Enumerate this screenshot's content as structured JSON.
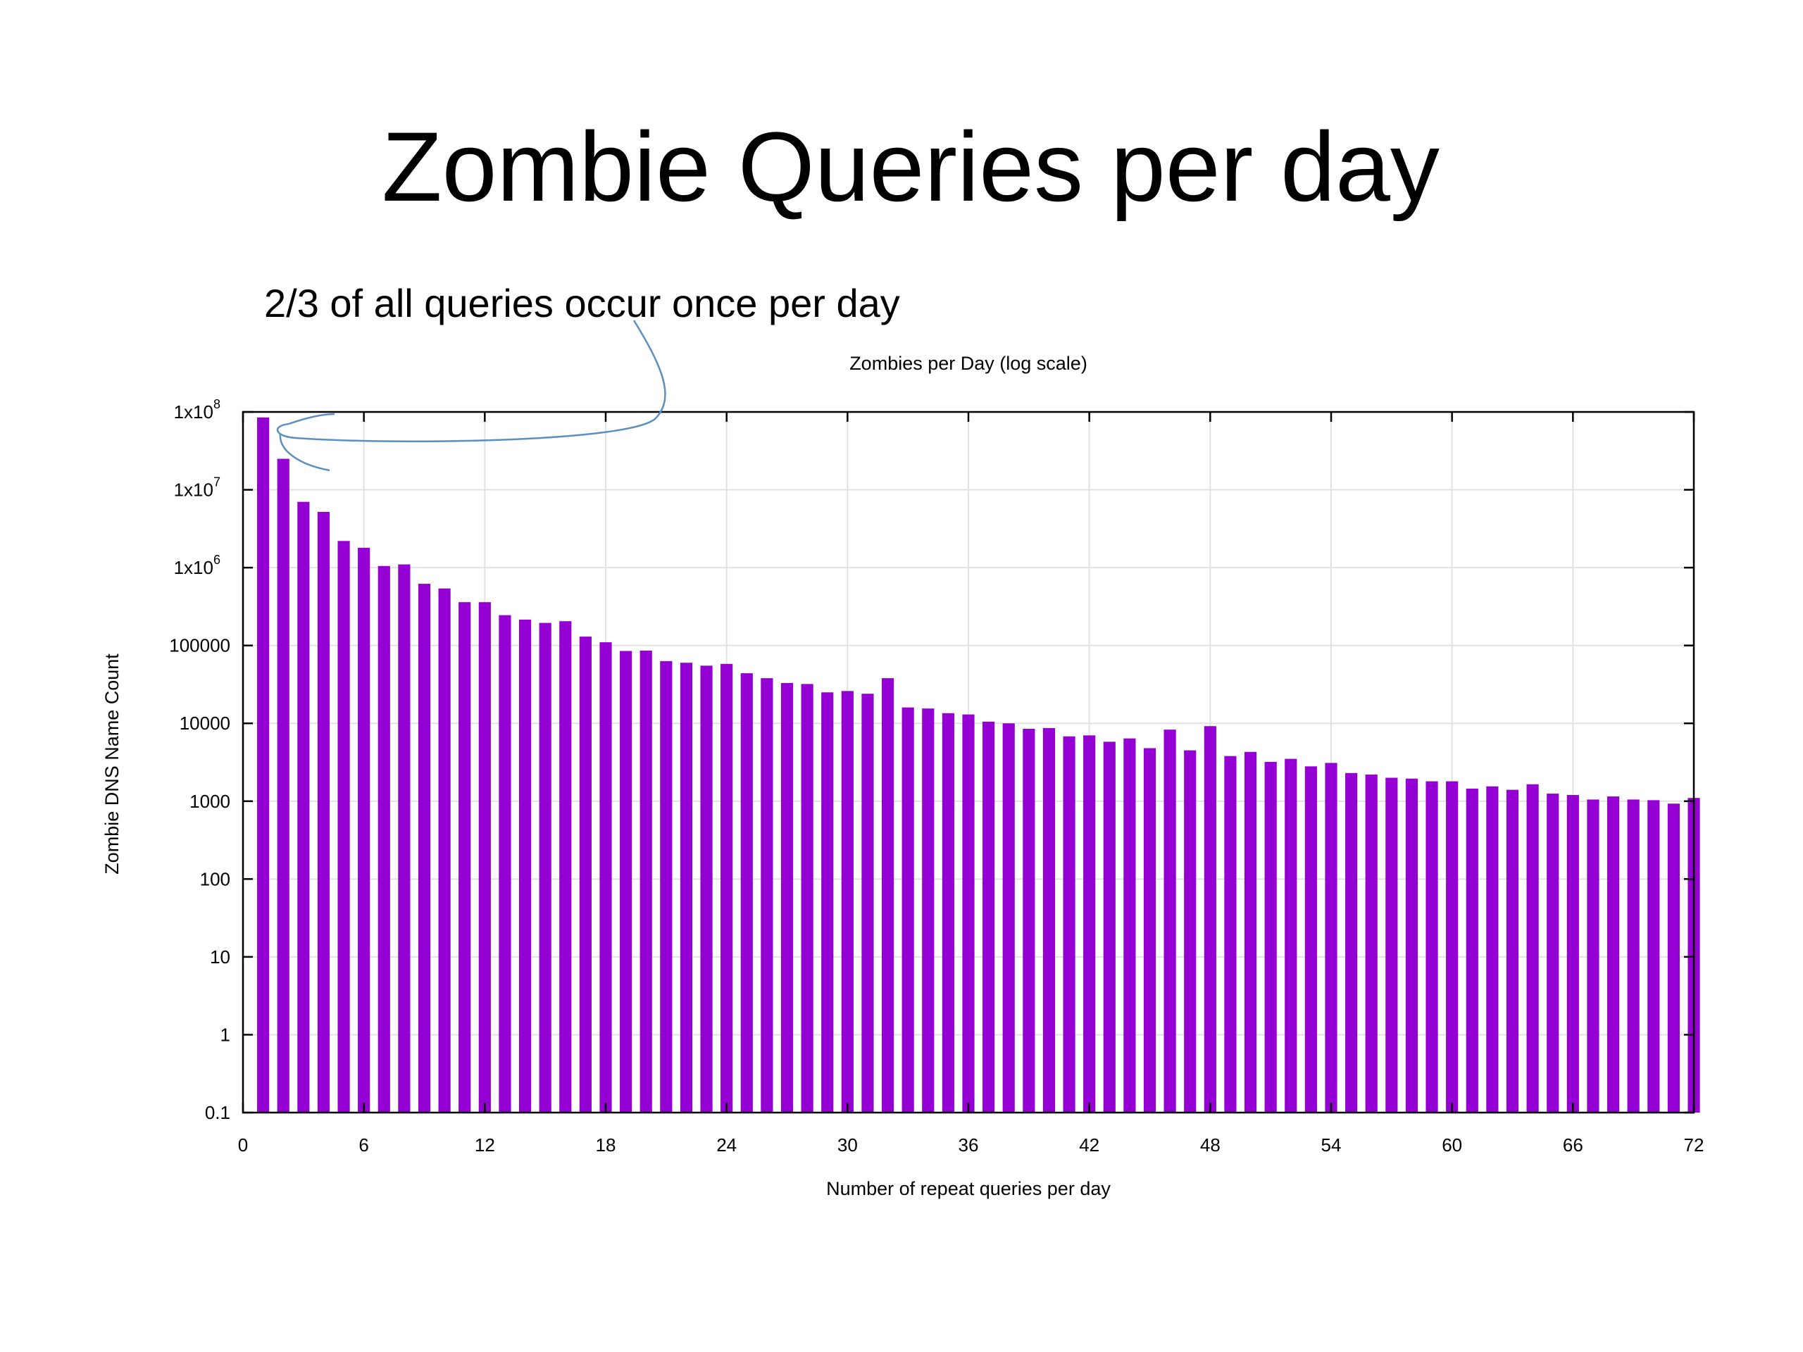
{
  "slide": {
    "title": "Zombie Queries per day",
    "annotation": "2/3 of all queries occur once per day"
  },
  "colors": {
    "bar": "#9400D3",
    "annotation_arrow": "#5b8fc0",
    "grid": "#e2e2e2",
    "text": "#000000"
  },
  "chart_data": {
    "type": "bar",
    "title": "Zombies per Day (log scale)",
    "xlabel": "Number of repeat queries per day",
    "ylabel": "Zombie DNS Name Count",
    "yscale": "log",
    "xlim": [
      0,
      72
    ],
    "ylim": [
      0.1,
      100000000
    ],
    "grid": true,
    "legend": "none",
    "xticks": [
      0,
      6,
      12,
      18,
      24,
      30,
      36,
      42,
      48,
      54,
      60,
      66,
      72
    ],
    "xtick_labels": [
      "0",
      "6",
      "12",
      "18",
      "24",
      "30",
      "36",
      "42",
      "48",
      "54",
      "60",
      "66",
      "72"
    ],
    "yticks": [
      0.1,
      1,
      10,
      100,
      1000,
      10000,
      100000,
      1000000,
      10000000,
      100000000
    ],
    "ytick_labels": [
      {
        "base": "0.1",
        "sup": ""
      },
      {
        "base": "1",
        "sup": ""
      },
      {
        "base": "10",
        "sup": ""
      },
      {
        "base": "100",
        "sup": ""
      },
      {
        "base": "1000",
        "sup": ""
      },
      {
        "base": "10000",
        "sup": ""
      },
      {
        "base": "100000",
        "sup": ""
      },
      {
        "base": "1x10",
        "sup": "6"
      },
      {
        "base": "1x10",
        "sup": "7"
      },
      {
        "base": "1x10",
        "sup": "8"
      }
    ],
    "x": [
      1,
      2,
      3,
      4,
      5,
      6,
      7,
      8,
      9,
      10,
      11,
      12,
      13,
      14,
      15,
      16,
      17,
      18,
      19,
      20,
      21,
      22,
      23,
      24,
      25,
      26,
      27,
      28,
      29,
      30,
      31,
      32,
      33,
      34,
      35,
      36,
      37,
      38,
      39,
      40,
      41,
      42,
      43,
      44,
      45,
      46,
      47,
      48,
      49,
      50,
      51,
      52,
      53,
      54,
      55,
      56,
      57,
      58,
      59,
      60,
      61,
      62,
      63,
      64,
      65,
      66,
      67,
      68,
      69,
      70,
      71,
      72
    ],
    "values": [
      85000000,
      25000000,
      7000000,
      5200000,
      2200000,
      1800000,
      1050000,
      1100000,
      620000,
      540000,
      360000,
      360000,
      245000,
      215000,
      195000,
      205000,
      130000,
      110000,
      85000,
      86000,
      63000,
      60000,
      55000,
      58000,
      44000,
      38000,
      33000,
      32000,
      25000,
      26000,
      24000,
      38000,
      16000,
      15500,
      13500,
      13000,
      10500,
      10000,
      8500,
      8700,
      6800,
      7000,
      5800,
      6400,
      4800,
      8300,
      4500,
      9200,
      3800,
      4300,
      3200,
      3500,
      2800,
      3100,
      2300,
      2200,
      2000,
      1950,
      1800,
      1800,
      1450,
      1550,
      1400,
      1650,
      1250,
      1200,
      1050,
      1150,
      1050,
      1030,
      930,
      1100
    ]
  }
}
